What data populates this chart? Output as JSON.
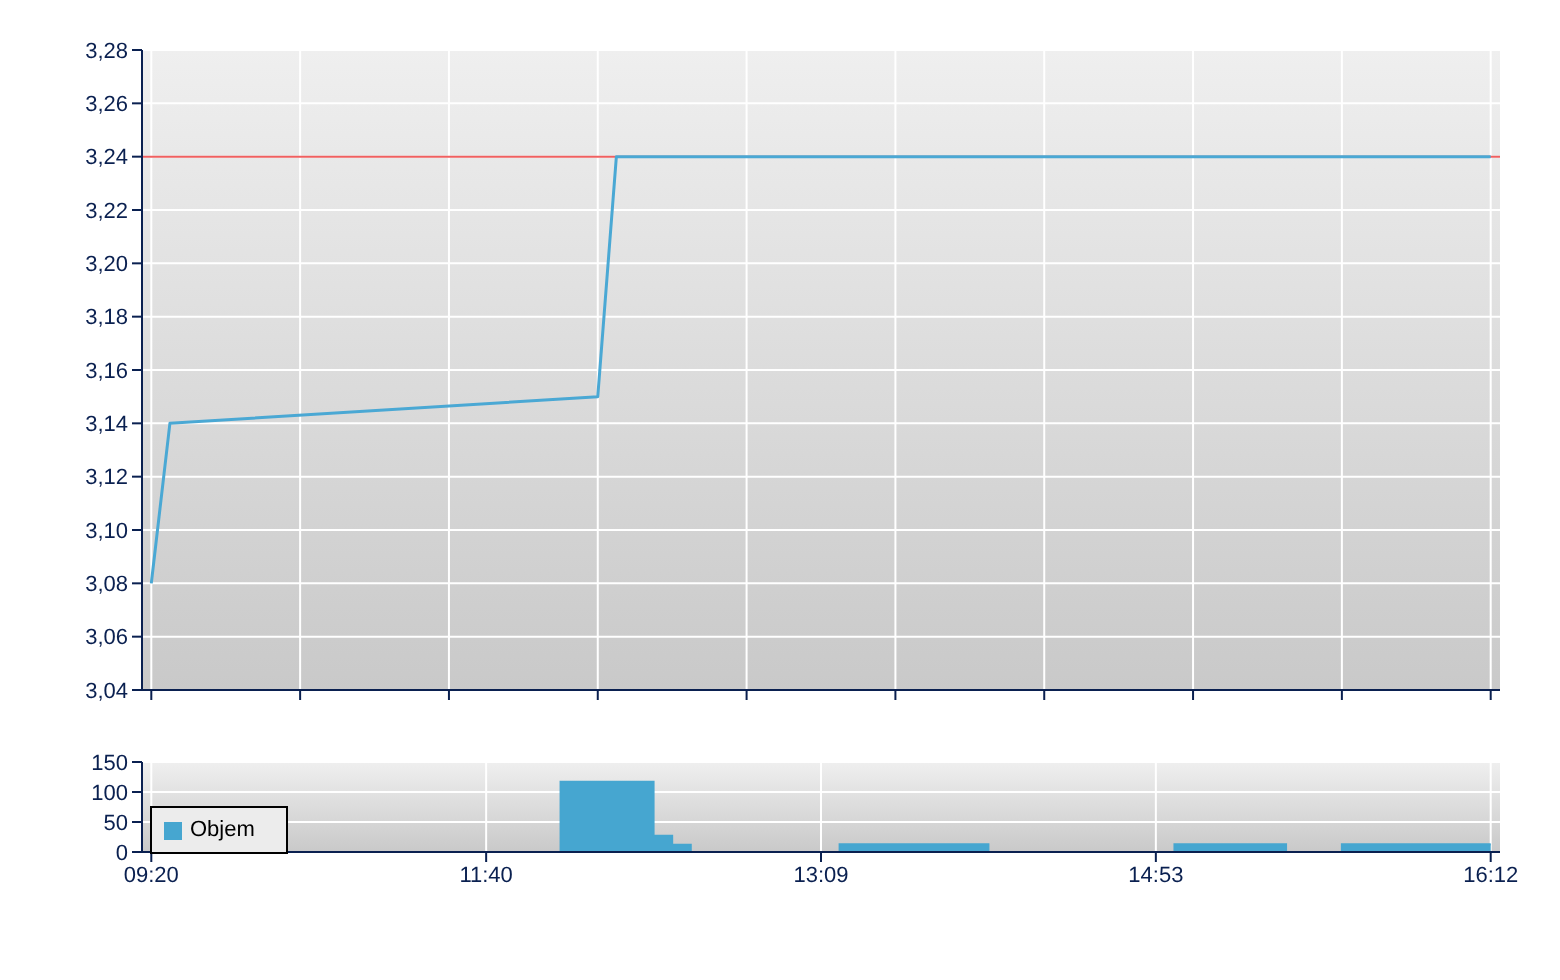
{
  "chart_data": [
    {
      "type": "line",
      "categories": [
        null,
        null,
        null,
        null,
        null,
        null,
        null,
        null,
        null,
        null,
        null,
        null,
        null,
        null,
        null,
        null,
        null,
        null,
        null,
        null,
        null,
        null,
        null,
        null,
        null,
        null,
        null,
        null,
        null,
        null,
        null,
        null,
        null,
        null,
        null,
        null,
        null,
        null,
        null,
        null,
        null,
        null,
        null,
        null,
        null,
        null,
        null,
        null,
        null,
        null,
        null,
        null,
        null,
        null,
        null,
        null,
        null,
        null,
        null,
        null,
        null,
        null,
        null,
        null,
        null,
        null,
        null,
        null,
        null,
        null,
        null,
        null,
        null
      ],
      "ylim": [
        3.04,
        3.28
      ],
      "yticks": [
        {
          "value": 3.04,
          "label": "3,04"
        },
        {
          "value": 3.06,
          "label": "3,06"
        },
        {
          "value": 3.08,
          "label": "3,08"
        },
        {
          "value": 3.1,
          "label": "3,10"
        },
        {
          "value": 3.12,
          "label": "3,12"
        },
        {
          "value": 3.14,
          "label": "3,14"
        },
        {
          "value": 3.16,
          "label": "3,16"
        },
        {
          "value": 3.18,
          "label": "3,18"
        },
        {
          "value": 3.2,
          "label": "3,20"
        },
        {
          "value": 3.22,
          "label": "3,22"
        },
        {
          "value": 3.24,
          "label": "3,24"
        },
        {
          "value": 3.26,
          "label": "3,26"
        },
        {
          "value": 3.28,
          "label": "3,28"
        }
      ],
      "series": [
        {
          "color": "#4aa8d4",
          "values": [
            3.08,
            3.14,
            null,
            null,
            null,
            null,
            null,
            null,
            null,
            null,
            null,
            null,
            null,
            null,
            null,
            null,
            null,
            null,
            null,
            null,
            null,
            null,
            null,
            null,
            3.15,
            3.24,
            null,
            null,
            null,
            null,
            null,
            null,
            null,
            null,
            null,
            null,
            null,
            null,
            null,
            null,
            null,
            null,
            null,
            null,
            null,
            null,
            null,
            null,
            null,
            null,
            null,
            null,
            null,
            null,
            null,
            null,
            null,
            null,
            null,
            null,
            null,
            null,
            null,
            null,
            null,
            null,
            null,
            null,
            null,
            null,
            null,
            null,
            3.24
          ]
        }
      ],
      "ref_lines": [
        {
          "axis": "y",
          "value": 3.24,
          "label": null,
          "color": "#f06060"
        }
      ],
      "grid": true,
      "tick_labels": "y",
      "marker": "none"
    },
    {
      "type": "area",
      "categories": [
        "09:20",
        null,
        null,
        null,
        null,
        null,
        null,
        null,
        null,
        null,
        null,
        null,
        null,
        null,
        null,
        null,
        null,
        null,
        "11:40",
        null,
        null,
        null,
        null,
        null,
        null,
        null,
        null,
        null,
        null,
        null,
        null,
        null,
        null,
        null,
        null,
        null,
        "13:09",
        null,
        null,
        null,
        null,
        null,
        null,
        null,
        null,
        null,
        null,
        null,
        null,
        null,
        null,
        null,
        null,
        null,
        "14:53",
        null,
        null,
        null,
        null,
        null,
        null,
        null,
        null,
        null,
        null,
        null,
        null,
        null,
        null,
        null,
        null,
        null,
        "16:12"
      ],
      "ylim": [
        0,
        150
      ],
      "yticks": [
        0,
        50,
        100,
        150
      ],
      "series": [
        {
          "name": "Objem",
          "color": "#46a6d0",
          "values": [
            0,
            0,
            0,
            0,
            0,
            0,
            0,
            0,
            0,
            0,
            0,
            0,
            0,
            0,
            0,
            0,
            0,
            0,
            0,
            0,
            0,
            0,
            117,
            117,
            117,
            117,
            117,
            27,
            12,
            0,
            0,
            0,
            0,
            0,
            0,
            0,
            0,
            13,
            13,
            13,
            13,
            13,
            13,
            13,
            13,
            0,
            0,
            0,
            0,
            0,
            0,
            0,
            0,
            0,
            0,
            13,
            13,
            13,
            13,
            13,
            13,
            0,
            0,
            0,
            13,
            13,
            13,
            13,
            13,
            13,
            13,
            13,
            13
          ]
        }
      ],
      "grid": true,
      "legend": "left",
      "line_style": "solid"
    }
  ]
}
